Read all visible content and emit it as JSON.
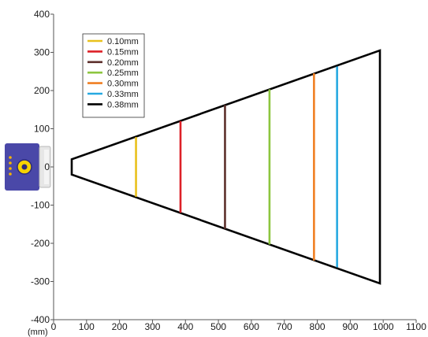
{
  "chart_data": {
    "type": "line",
    "title": "",
    "xlabel": "",
    "x_unit": "(mm)",
    "ylabel": "",
    "xlim": [
      0,
      1100
    ],
    "ylim": [
      -400,
      400
    ],
    "x_ticks": [
      0,
      100,
      200,
      300,
      400,
      500,
      600,
      700,
      800,
      900,
      1000,
      1100
    ],
    "y_ticks": [
      400,
      300,
      200,
      100,
      0,
      -100,
      -200,
      -300,
      -400
    ],
    "grid": false,
    "legend_position": "top-left",
    "field_outline": {
      "color": "#000000",
      "points": [
        [
          55,
          20
        ],
        [
          55,
          -20
        ],
        [
          990,
          -305
        ],
        [
          990,
          305
        ]
      ]
    },
    "series": [
      {
        "name": "0.10mm",
        "color": "#e8c11c",
        "x": 250,
        "y_range": [
          -78,
          78
        ]
      },
      {
        "name": "0.15mm",
        "color": "#dd2027",
        "x": 385,
        "y_range": [
          -120,
          120
        ]
      },
      {
        "name": "0.20mm",
        "color": "#5c2f2b",
        "x": 520,
        "y_range": [
          -162,
          162
        ]
      },
      {
        "name": "0.25mm",
        "color": "#8dc63f",
        "x": 655,
        "y_range": [
          -203,
          203
        ]
      },
      {
        "name": "0.30mm",
        "color": "#f07f22",
        "x": 790,
        "y_range": [
          -245,
          245
        ]
      },
      {
        "name": "0.33mm",
        "color": "#27a9e1",
        "x": 860,
        "y_range": [
          -263,
          263
        ]
      },
      {
        "name": "0.38mm",
        "color": "#000000",
        "x": 990,
        "y_range": [
          -305,
          305
        ]
      }
    ],
    "device_icon": "barcode-scanner-icon",
    "device_color": "#4a48a8"
  }
}
